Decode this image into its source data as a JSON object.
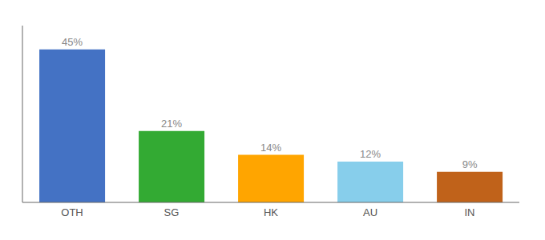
{
  "chart_data": {
    "type": "bar",
    "categories": [
      "OTH",
      "SG",
      "HK",
      "AU",
      "IN"
    ],
    "values": [
      45,
      21,
      14,
      12,
      9
    ],
    "value_labels": [
      "45%",
      "21%",
      "14%",
      "12%",
      "9%"
    ],
    "colors": [
      "#4472C4",
      "#33AA33",
      "#FFA500",
      "#87CEEB",
      "#C0621A"
    ],
    "ylim": [
      0,
      52
    ],
    "data_labels": true,
    "tick_labels": "x",
    "grid": false
  }
}
